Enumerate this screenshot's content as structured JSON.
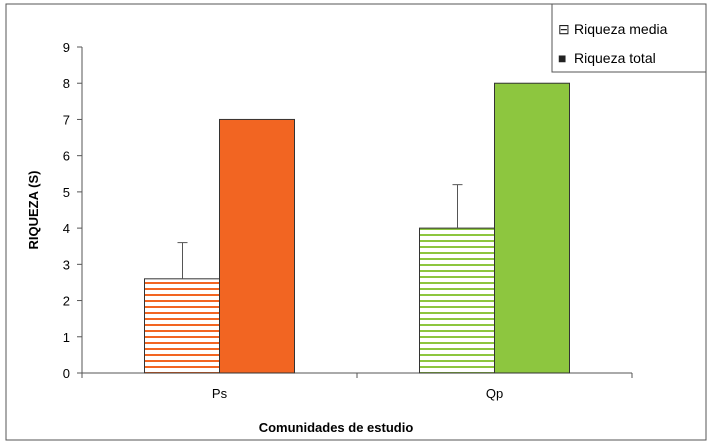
{
  "chart_data": {
    "type": "bar",
    "categories": [
      "Ps",
      "Qp"
    ],
    "series": [
      {
        "name": "Riqueza media",
        "values": [
          2.6,
          4.0
        ],
        "error_upper": [
          3.6,
          5.2
        ],
        "pattern": "horizontal-stripes",
        "colors": [
          "#f26522",
          "#8dc63f"
        ]
      },
      {
        "name": "Riqueza total",
        "values": [
          7,
          8
        ],
        "pattern": "solid",
        "colors": [
          "#f26522",
          "#8dc63f"
        ]
      }
    ],
    "xlabel": "Comunidades de estudio",
    "ylabel": "RIQUEZA (S)",
    "ylim": [
      0,
      9
    ],
    "yticks": [
      "0",
      "1",
      "2",
      "3",
      "4",
      "5",
      "6",
      "7",
      "8",
      "9"
    ],
    "grid": false,
    "legend_position": "top-right",
    "legend_markers": [
      "⊟",
      "■"
    ]
  }
}
